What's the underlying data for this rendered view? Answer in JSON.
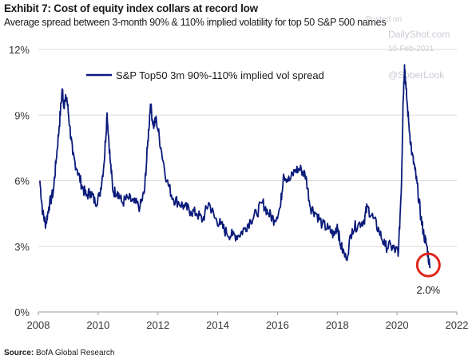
{
  "header": {
    "title": "Exhibit 7: Cost of equity index collars at record low",
    "subtitle": "Average spread between 3-month 90% & 110% implied volatility for top 50 S&P 500 names"
  },
  "footer": {
    "source_label": "Source:",
    "source_text": "BofA Global Research"
  },
  "watermark": {
    "posted": "Posted on",
    "site": "DailyShot.com",
    "date": "10-Feb-2021",
    "handle": "@SoberLook"
  },
  "colors": {
    "series": "#0a1a7a",
    "highlight_circle": "#e0261b",
    "grid": "#d9d9d9"
  },
  "chart_data": {
    "type": "line",
    "title": "Exhibit 7: Cost of equity index collars at record low",
    "subtitle": "Average spread between 3-month 90% & 110% implied volatility for top 50 S&P 500 names",
    "xlim": [
      2008,
      2022
    ],
    "ylim": [
      0,
      12
    ],
    "x_ticks": [
      2008,
      2010,
      2012,
      2014,
      2016,
      2018,
      2020,
      2022
    ],
    "x_tick_labels": [
      "2008",
      "2010",
      "2012",
      "2014",
      "2016",
      "2018",
      "2020",
      "2022"
    ],
    "y_ticks": [
      0,
      3,
      6,
      9,
      12
    ],
    "y_tick_labels": [
      "0%",
      "3%",
      "6%",
      "9%",
      "12%"
    ],
    "grid": "horizontal",
    "legend": "top-left",
    "annotation": {
      "x": 2021.1,
      "y": 2.0,
      "label": "2.0%"
    },
    "series": [
      {
        "name": "S&P Top50 3m 90%-110% implied vol spread",
        "x": [
          2008.05,
          2008.15,
          2008.25,
          2008.35,
          2008.5,
          2008.6,
          2008.7,
          2008.8,
          2008.85,
          2008.95,
          2009.05,
          2009.15,
          2009.3,
          2009.45,
          2009.6,
          2009.75,
          2009.9,
          2010.05,
          2010.2,
          2010.3,
          2010.4,
          2010.5,
          2010.65,
          2010.8,
          2011.0,
          2011.2,
          2011.4,
          2011.55,
          2011.65,
          2011.75,
          2011.85,
          2011.95,
          2012.1,
          2012.3,
          2012.5,
          2012.7,
          2012.9,
          2013.1,
          2013.3,
          2013.5,
          2013.7,
          2013.9,
          2014.1,
          2014.3,
          2014.5,
          2014.7,
          2014.9,
          2015.1,
          2015.3,
          2015.5,
          2015.7,
          2015.9,
          2016.1,
          2016.2,
          2016.4,
          2016.6,
          2016.8,
          2016.95,
          2017.1,
          2017.3,
          2017.5,
          2017.7,
          2017.9,
          2018.0,
          2018.1,
          2018.3,
          2018.5,
          2018.7,
          2018.9,
          2019.0,
          2019.2,
          2019.4,
          2019.6,
          2019.8,
          2019.95,
          2020.05,
          2020.15,
          2020.2,
          2020.25,
          2020.3,
          2020.4,
          2020.5,
          2020.6,
          2020.7,
          2020.8,
          2020.9,
          2021.0,
          2021.1
        ],
        "values": [
          6.0,
          4.5,
          4.0,
          4.8,
          5.5,
          7.0,
          8.5,
          10.2,
          9.5,
          9.8,
          8.5,
          7.2,
          6.5,
          5.8,
          5.3,
          5.5,
          5.0,
          5.3,
          6.8,
          9.1,
          7.0,
          5.5,
          5.5,
          5.0,
          5.2,
          5.0,
          4.8,
          5.5,
          7.5,
          9.5,
          8.5,
          8.8,
          7.5,
          6.0,
          5.2,
          5.0,
          4.8,
          4.6,
          4.5,
          4.2,
          5.0,
          4.3,
          4.0,
          3.6,
          3.5,
          3.5,
          3.8,
          4.2,
          4.5,
          5.0,
          4.5,
          4.2,
          4.8,
          6.3,
          6.0,
          6.5,
          6.5,
          6.2,
          4.8,
          4.5,
          4.0,
          3.8,
          3.5,
          4.0,
          3.1,
          2.4,
          3.8,
          4.0,
          4.2,
          4.8,
          4.3,
          3.7,
          3.0,
          3.0,
          2.8,
          2.8,
          6.0,
          9.5,
          11.3,
          10.2,
          8.5,
          7.2,
          6.5,
          5.5,
          4.3,
          3.5,
          3.0,
          2.0
        ]
      }
    ]
  }
}
